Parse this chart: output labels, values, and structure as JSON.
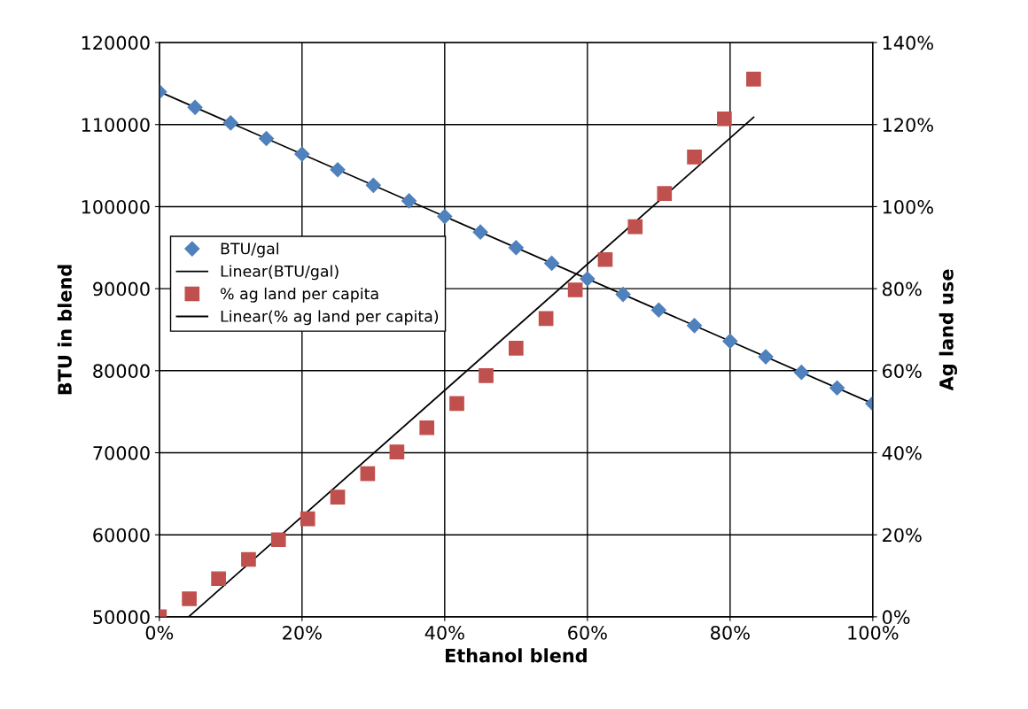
{
  "chart_data": {
    "type": "scatter",
    "xlabel": "Ethanol blend",
    "ylabel": "BTU in blend",
    "y2label": "Ag land use",
    "xlim": [
      0,
      100
    ],
    "xticks": [
      {
        "value": 0,
        "label": "0%"
      },
      {
        "value": 20,
        "label": "20%"
      },
      {
        "value": 40,
        "label": "40%"
      },
      {
        "value": 60,
        "label": "60%"
      },
      {
        "value": 80,
        "label": "80%"
      },
      {
        "value": 100,
        "label": "100%"
      }
    ],
    "ylim": [
      50000,
      120000
    ],
    "yticks": [
      50000,
      60000,
      70000,
      80000,
      90000,
      100000,
      110000,
      120000
    ],
    "y2lim": [
      0,
      140
    ],
    "y2ticks": [
      {
        "value": 0,
        "label": "0%"
      },
      {
        "value": 20,
        "label": "20%"
      },
      {
        "value": 40,
        "label": "40%"
      },
      {
        "value": 60,
        "label": "60%"
      },
      {
        "value": 80,
        "label": "80%"
      },
      {
        "value": 100,
        "label": "100%"
      },
      {
        "value": 120,
        "label": "120%"
      },
      {
        "value": 140,
        "label": "140%"
      }
    ],
    "grid": true,
    "legend": "left",
    "series": [
      {
        "name": "BTU/gal",
        "marker": "diamond",
        "color": "#4f81bd",
        "x": [
          0,
          5,
          10,
          15,
          20,
          25,
          30,
          35,
          40,
          45,
          50,
          55,
          60,
          65,
          70,
          75,
          80,
          85,
          90,
          95,
          100
        ],
        "values": [
          114000,
          112100,
          110200,
          108300,
          106400,
          104500,
          102600,
          100700,
          98800,
          96900,
          95000,
          93100,
          91200,
          89300,
          87400,
          85500,
          83600,
          81700,
          79800,
          77900,
          76000
        ]
      },
      {
        "name": "Linear(BTU/gal)",
        "type": "line",
        "color": "#000000",
        "x": [
          0,
          100
        ],
        "values": [
          114000,
          76000
        ]
      },
      {
        "name": "% ag land per capita",
        "marker": "square",
        "axis": "y2",
        "color": "#c0504d",
        "x": [
          0,
          4.2,
          8.3,
          12.5,
          16.7,
          20.8,
          25,
          29.2,
          33.3,
          37.5,
          41.7,
          45.8,
          50,
          54.2,
          58.3,
          62.5,
          66.7,
          70.8,
          75,
          79.2,
          83.3
        ],
        "values": [
          0,
          4.4,
          9.3,
          14,
          18.8,
          23.9,
          29.2,
          34.9,
          40.2,
          46.1,
          52,
          58.8,
          65.5,
          72.7,
          79.7,
          87.1,
          95.1,
          103.2,
          112.1,
          121.4,
          131.1
        ]
      },
      {
        "name": "Linear(% ag land per capita)",
        "type": "line",
        "axis": "y2",
        "color": "#000000",
        "x": [
          4.1,
          83.3
        ],
        "values": [
          0,
          121.8
        ]
      }
    ]
  }
}
